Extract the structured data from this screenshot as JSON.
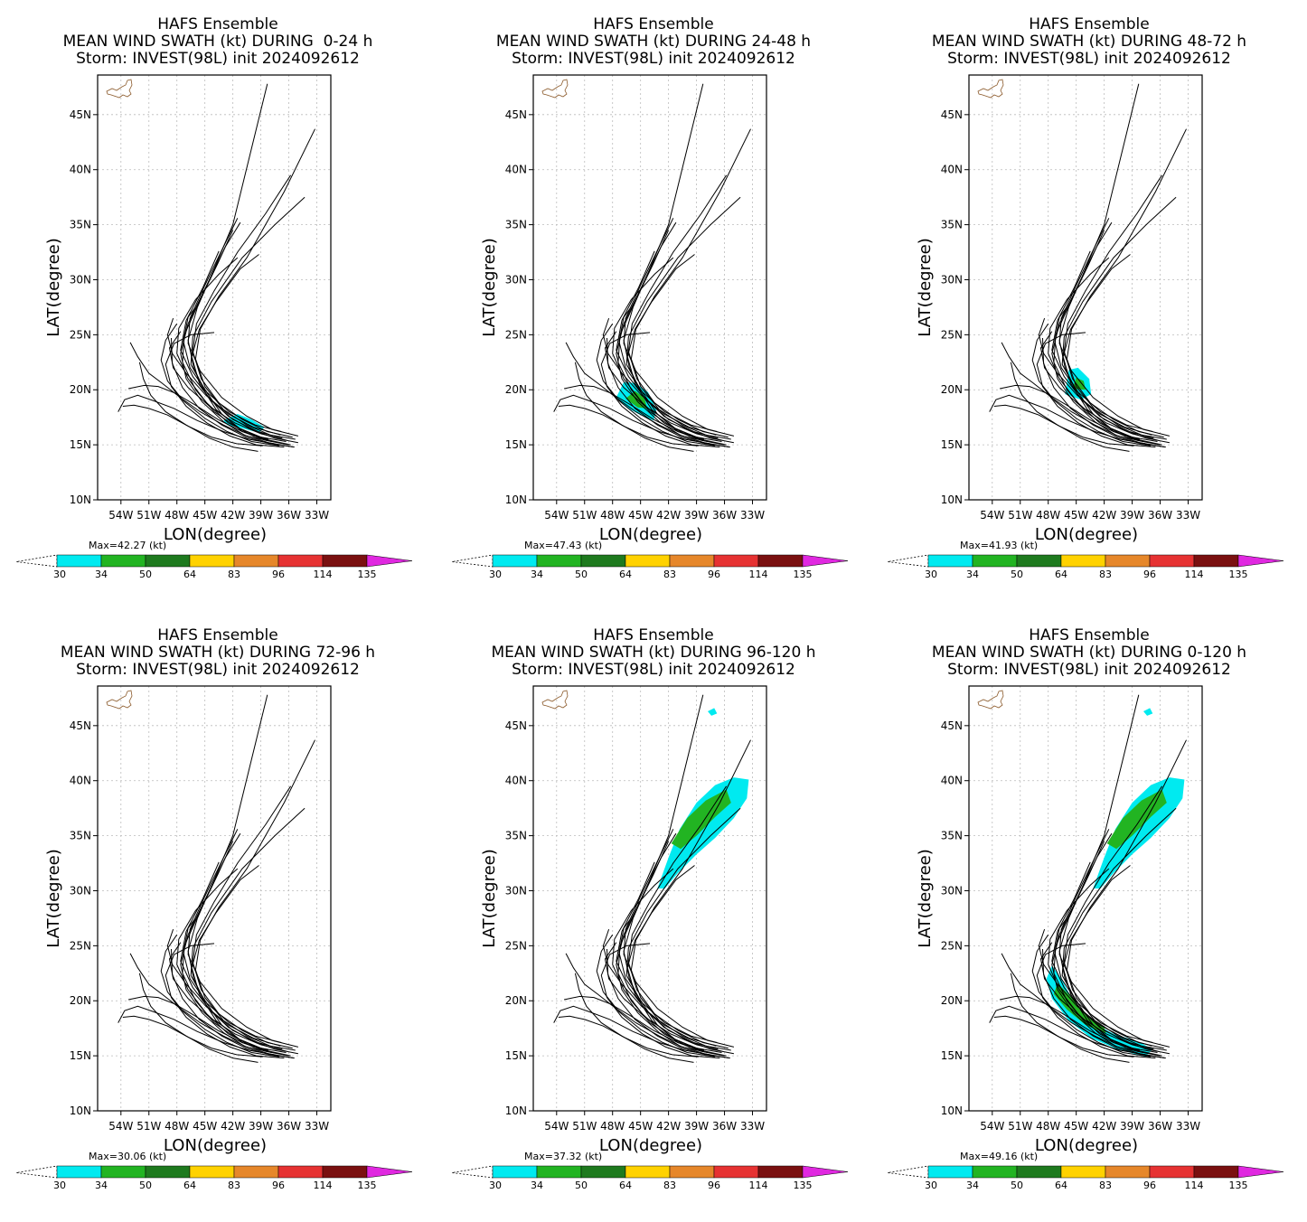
{
  "panels": [
    {
      "title1": "HAFS Ensemble",
      "title2": "MEAN WIND SWATH (kt) DURING  0-24 h",
      "title3": "Storm: INVEST(98L) init 2024092612",
      "max": "Max=42.27 (kt)"
    },
    {
      "title1": "HAFS Ensemble",
      "title2": "MEAN WIND SWATH (kt) DURING 24-48 h",
      "title3": "Storm: INVEST(98L) init 2024092612",
      "max": "Max=47.43 (kt)"
    },
    {
      "title1": "HAFS Ensemble",
      "title2": "MEAN WIND SWATH (kt) DURING 48-72 h",
      "title3": "Storm: INVEST(98L) init 2024092612",
      "max": "Max=41.93 (kt)"
    },
    {
      "title1": "HAFS Ensemble",
      "title2": "MEAN WIND SWATH (kt) DURING 72-96 h",
      "title3": "Storm: INVEST(98L) init 2024092612",
      "max": "Max=30.06 (kt)"
    },
    {
      "title1": "HAFS Ensemble",
      "title2": "MEAN WIND SWATH (kt) DURING 96-120 h",
      "title3": "Storm: INVEST(98L) init 2024092612",
      "max": "Max=37.32 (kt)"
    },
    {
      "title1": "HAFS Ensemble",
      "title2": "MEAN WIND SWATH (kt) DURING 0-120 h",
      "title3": "Storm: INVEST(98L) init 2024092612",
      "max": "Max=49.16 (kt)"
    }
  ],
  "axes": {
    "xlabel": "LON(degree)",
    "ylabel": "LAT(degree)",
    "lat_ticks": [
      "10N",
      "15N",
      "20N",
      "25N",
      "30N",
      "35N",
      "40N",
      "45N"
    ],
    "lon_ticks": [
      "54W",
      "51W",
      "48W",
      "45W",
      "42W",
      "39W",
      "36W",
      "33W"
    ]
  },
  "colorbar": {
    "labels": [
      "30",
      "34",
      "50",
      "64",
      "83",
      "96",
      "114",
      "135"
    ],
    "colors": [
      "#00eaf0",
      "#22b422",
      "#1e7a1e",
      "#ffd200",
      "#e6872a",
      "#e63232",
      "#7a1010",
      "#e028e0"
    ]
  },
  "chart_data": {
    "type": "map",
    "lat_range": [
      10,
      48.6
    ],
    "lon_range": [
      -56.5,
      -31.5
    ],
    "swath_regions": [
      {
        "panel": 1,
        "kt": "30-34",
        "area": "around 15-18N, 38-43W"
      },
      {
        "panel": 2,
        "kt": "30-50",
        "area": "around 17-20N, 42-47W"
      },
      {
        "panel": 3,
        "kt": "30-50",
        "area": "around 19-22N, 43-46W"
      },
      {
        "panel": 4,
        "kt": "none"
      },
      {
        "panel": 5,
        "kt": "30-50",
        "area": "around 30-40N, 33-43W"
      },
      {
        "panel": 6,
        "kt": "30-50",
        "area": "15-40N along track"
      }
    ]
  }
}
